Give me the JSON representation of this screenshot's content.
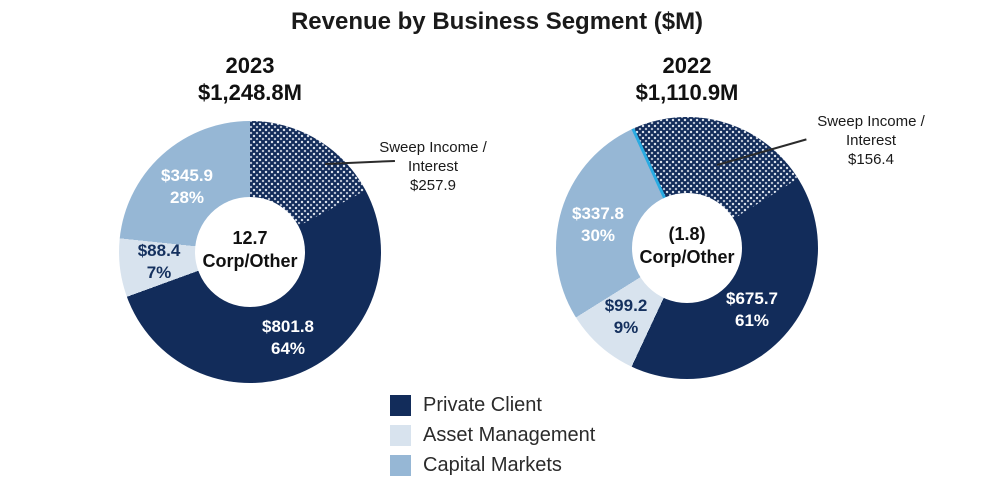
{
  "title": "Revenue by Business Segment ($M)",
  "colors": {
    "private_client": "#122C5A",
    "asset_management": "#D8E3EE",
    "capital_markets": "#96B7D5",
    "sweep_divider_2022": "#29ABE2",
    "slice_label_light": "#FFFFFF",
    "slice_label_dark": "#14305E"
  },
  "legend": {
    "items": [
      {
        "label": "Private Client",
        "color": "#122C5A"
      },
      {
        "label": "Asset Management",
        "color": "#D8E3EE"
      },
      {
        "label": "Capital Markets",
        "color": "#96B7D5"
      }
    ]
  },
  "chart_data": [
    {
      "type": "pie",
      "subtype": "donut",
      "year": "2023",
      "total_label": "$1,248.8M",
      "total_millions": 1248.8,
      "center_value": "12.7",
      "center_label": "Corp/Other",
      "slices": [
        {
          "name": "Private Client",
          "value_millions": 801.8,
          "display_value": "$801.8",
          "percent_label": "64%",
          "color": "#122C5A"
        },
        {
          "name": "Asset Management",
          "value_millions": 88.4,
          "display_value": "$88.4",
          "percent_label": "7%",
          "color": "#D8E3EE"
        },
        {
          "name": "Capital Markets",
          "value_millions": 345.9,
          "display_value": "$345.9",
          "percent_label": "28%",
          "color": "#96B7D5"
        }
      ],
      "sweep_callout": {
        "line1": "Sweep Income /",
        "line2": "Interest",
        "value_label": "$257.9",
        "value_millions": 257.9
      }
    },
    {
      "type": "pie",
      "subtype": "donut",
      "year": "2022",
      "total_label": "$1,110.9M",
      "total_millions": 1110.9,
      "center_value": "(1.8)",
      "center_label": "Corp/Other",
      "slices": [
        {
          "name": "Private Client",
          "value_millions": 675.7,
          "display_value": "$675.7",
          "percent_label": "61%",
          "color": "#122C5A"
        },
        {
          "name": "Asset Management",
          "value_millions": 99.2,
          "display_value": "$99.2",
          "percent_label": "9%",
          "color": "#D8E3EE"
        },
        {
          "name": "Capital Markets",
          "value_millions": 337.8,
          "display_value": "$337.8",
          "percent_label": "30%",
          "color": "#96B7D5"
        }
      ],
      "sweep_callout": {
        "line1": "Sweep Income /",
        "line2": "Interest",
        "value_label": "$156.4",
        "value_millions": 156.4
      }
    }
  ]
}
